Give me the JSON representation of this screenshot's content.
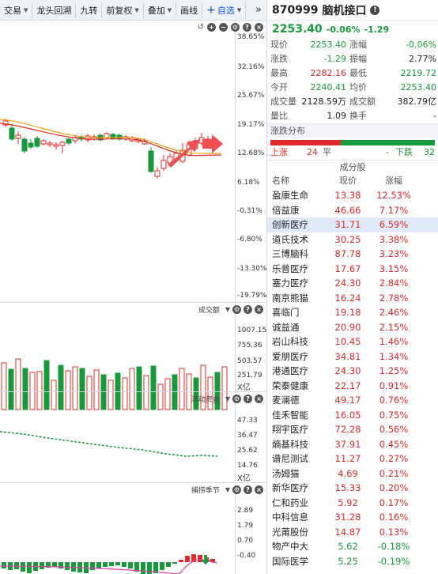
{
  "toolbar": {
    "items": [
      {
        "label": "交易",
        "caret": true
      },
      {
        "label": "龙头回溯",
        "caret": false
      },
      {
        "label": "九转",
        "caret": false
      },
      {
        "label": "前复权",
        "caret": true
      },
      {
        "label": "叠加",
        "caret": true
      },
      {
        "label": "画线",
        "caret": false
      },
      {
        "label": "自选",
        "caret": true
      }
    ],
    "more": "»"
  },
  "main_chart": {
    "axis_labels": [
      "38.65%",
      "32.16%",
      "25.67%",
      "19.17%",
      "12.68%",
      "6.18%",
      "-0.31%",
      "-6.80%",
      "-13.30%",
      "-19.79%"
    ],
    "colors": {
      "up": "#e02a2a",
      "down": "#169a3c",
      "ma1": "#e8a317",
      "ma2": "#e02a2a",
      "arrow": "#f05050"
    }
  },
  "volume_panel": {
    "title": "成交额",
    "axis_labels": [
      "1007.15",
      "755.36",
      "503.57",
      "251.79"
    ],
    "unit": "X亿"
  },
  "flow_panel": {
    "title": "流动资金",
    "axis_labels": [
      "47.33",
      "36.47",
      "25.62",
      "14.76"
    ],
    "unit": "X亿"
  },
  "season_panel": {
    "title": "捕捞季节",
    "axis_labels": [
      "2.89",
      "1.79",
      "0.70",
      "-0.40"
    ]
  },
  "stock": {
    "code": "870999",
    "name": "脑机接口",
    "price": "2253.40",
    "change_pct": "-0.06%",
    "change": "-1.29"
  },
  "quote": [
    {
      "l1": "现价",
      "v1": "2253.40",
      "c1": "green",
      "l2": "涨幅",
      "v2": "-0.06%",
      "c2": "green"
    },
    {
      "l1": "涨跌",
      "v1": "-1.29",
      "c1": "green",
      "l2": "振幅",
      "v2": "2.77%",
      "c2": "dark"
    },
    {
      "l1": "最高",
      "v1": "2282.16",
      "c1": "red",
      "l2": "最低",
      "v2": "2219.72",
      "c2": "green"
    },
    {
      "l1": "今开",
      "v1": "2240.41",
      "c1": "green",
      "l2": "均价",
      "v2": "2253.40",
      "c2": "green"
    },
    {
      "l1": "成交量",
      "v1": "2128.59万",
      "c1": "dark",
      "l2": "成交额",
      "v2": "382.79亿",
      "c2": "dark"
    },
    {
      "l1": "量比",
      "v1": "1.09",
      "c1": "dark",
      "l2": "换手",
      "v2": "-",
      "c2": "dark"
    }
  ],
  "distribution": {
    "title": "涨跌分布",
    "up_label": "上涨",
    "up": 24,
    "flat_label": "平",
    "flat": "-",
    "down_label": "下跌",
    "down": 32
  },
  "components": {
    "title": "成分股",
    "headers": [
      "名称",
      "现价",
      "涨幅"
    ],
    "rows": [
      {
        "name": "盈康生命",
        "price": "13.38",
        "chg": "12.53%",
        "dir": "red"
      },
      {
        "name": "倍益康",
        "price": "46.66",
        "chg": "7.17%",
        "dir": "red"
      },
      {
        "name": "创新医疗",
        "price": "31.71",
        "chg": "6.59%",
        "dir": "red",
        "selected": true
      },
      {
        "name": "道氏技术",
        "price": "30.25",
        "chg": "3.38%",
        "dir": "red"
      },
      {
        "name": "三博脑科",
        "price": "87.78",
        "chg": "3.23%",
        "dir": "red"
      },
      {
        "name": "乐普医疗",
        "price": "17.67",
        "chg": "3.15%",
        "dir": "red"
      },
      {
        "name": "塞力医疗",
        "price": "24.30",
        "chg": "2.84%",
        "dir": "red"
      },
      {
        "name": "南京熊猫",
        "price": "16.24",
        "chg": "2.78%",
        "dir": "red"
      },
      {
        "name": "喜临门",
        "price": "19.18",
        "chg": "2.46%",
        "dir": "red"
      },
      {
        "name": "诚益通",
        "price": "20.90",
        "chg": "2.15%",
        "dir": "red"
      },
      {
        "name": "岩山科技",
        "price": "10.45",
        "chg": "1.46%",
        "dir": "red"
      },
      {
        "name": "爱朋医疗",
        "price": "34.81",
        "chg": "1.34%",
        "dir": "red"
      },
      {
        "name": "港通医疗",
        "price": "24.30",
        "chg": "1.25%",
        "dir": "red"
      },
      {
        "name": "荣泰健康",
        "price": "22.17",
        "chg": "0.91%",
        "dir": "red"
      },
      {
        "name": "麦澜德",
        "price": "49.17",
        "chg": "0.76%",
        "dir": "red"
      },
      {
        "name": "佳禾智能",
        "price": "16.05",
        "chg": "0.75%",
        "dir": "red"
      },
      {
        "name": "翔宇医疗",
        "price": "72.28",
        "chg": "0.56%",
        "dir": "red"
      },
      {
        "name": "熵基科技",
        "price": "37.91",
        "chg": "0.45%",
        "dir": "red"
      },
      {
        "name": "谱尼测试",
        "price": "11.27",
        "chg": "0.27%",
        "dir": "red"
      },
      {
        "name": "汤姆猫",
        "price": "4.69",
        "chg": "0.21%",
        "dir": "red"
      },
      {
        "name": "新华医疗",
        "price": "15.33",
        "chg": "0.20%",
        "dir": "red"
      },
      {
        "name": "仁和药业",
        "price": "5.92",
        "chg": "0.17%",
        "dir": "red"
      },
      {
        "name": "中科信息",
        "price": "31.28",
        "chg": "0.16%",
        "dir": "red"
      },
      {
        "name": "光莆股份",
        "price": "14.87",
        "chg": "0.13%",
        "dir": "red"
      },
      {
        "name": "物产中大",
        "price": "5.62",
        "chg": "-0.18%",
        "dir": "green"
      },
      {
        "name": "国际医学",
        "price": "5.25",
        "chg": "-0.19%",
        "dir": "green"
      }
    ]
  }
}
